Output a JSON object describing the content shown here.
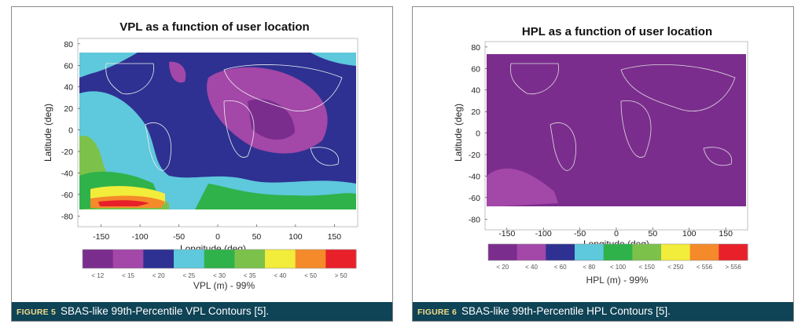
{
  "figures": [
    {
      "label": "FIGURE 5",
      "caption": "SBAS-like 99th-Percentile VPL Contours [5]."
    },
    {
      "label": "FIGURE 6",
      "caption": "SBAS-like 99th-Percentile HPL Contours [5]."
    }
  ],
  "chart_data": [
    {
      "type": "heatmap",
      "title": "VPL as a function of user location",
      "xlabel": "Longitude (deg)",
      "ylabel": "Latitude (deg)",
      "xlim": [
        -180,
        180
      ],
      "ylim": [
        -90,
        85
      ],
      "xticks": [
        "-150",
        "-100",
        "-50",
        "0",
        "50",
        "100",
        "150"
      ],
      "yticks": [
        "80",
        "60",
        "40",
        "20",
        "0",
        "-20",
        "-40",
        "-60",
        "-80"
      ],
      "colorbar": {
        "title": "VPL (m) - 99%",
        "labels": [
          "< 12",
          "< 15",
          "< 20",
          "< 25",
          "< 30",
          "< 35",
          "< 40",
          "< 50",
          "> 50"
        ],
        "colors": [
          "#7b2d8e",
          "#a347a8",
          "#2e3192",
          "#5ec8dc",
          "#2fb24a",
          "#7cc24a",
          "#f2ec3a",
          "#f58a2a",
          "#e8202a"
        ]
      }
    },
    {
      "type": "heatmap",
      "title": "HPL as a function of user location",
      "xlabel": "Longitude (deg)",
      "ylabel": "Latitude (deg)",
      "xlim": [
        -180,
        180
      ],
      "ylim": [
        -90,
        85
      ],
      "xticks": [
        "-150",
        "-100",
        "-50",
        "0",
        "50",
        "100",
        "150"
      ],
      "yticks": [
        "80",
        "60",
        "40",
        "20",
        "0",
        "-20",
        "-40",
        "-60",
        "-80"
      ],
      "colorbar": {
        "title": "HPL (m) - 99%",
        "labels": [
          "< 20",
          "< 40",
          "< 60",
          "< 80",
          "< 100",
          "< 150",
          "< 250",
          "< 556",
          "> 556"
        ],
        "colors": [
          "#7b2d8e",
          "#a347a8",
          "#2e3192",
          "#5ec8dc",
          "#2fb24a",
          "#7cc24a",
          "#f2ec3a",
          "#f58a2a",
          "#e8202a"
        ]
      }
    }
  ]
}
